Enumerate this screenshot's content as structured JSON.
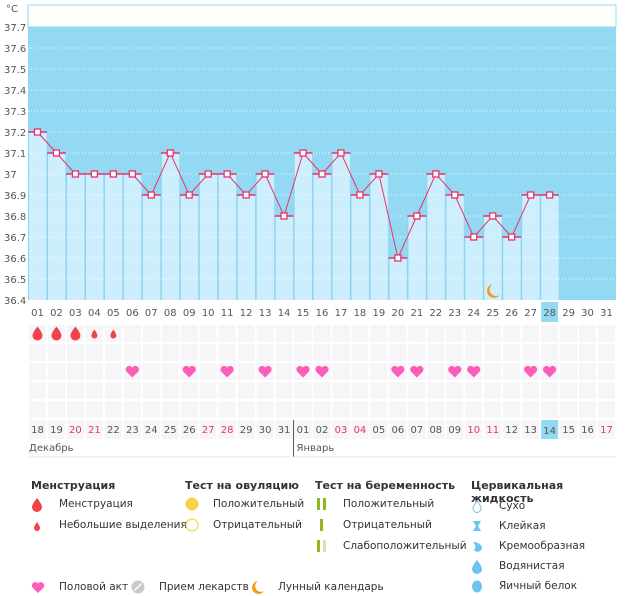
{
  "chart_data": {
    "type": "line",
    "title": "",
    "unit_label": "°C",
    "ylim": [
      36.4,
      37.7
    ],
    "yticks": [
      "37.7",
      "37.6",
      "37.5",
      "37.4",
      "37.3",
      "37.2",
      "37.1",
      "37",
      "36.9",
      "36.8",
      "36.7",
      "36.6",
      "36.5",
      "36.4"
    ],
    "cycle_days": [
      "01",
      "02",
      "03",
      "04",
      "05",
      "06",
      "07",
      "08",
      "09",
      "10",
      "11",
      "12",
      "13",
      "14",
      "15",
      "16",
      "17",
      "18",
      "19",
      "20",
      "21",
      "22",
      "23",
      "24",
      "25",
      "26",
      "27",
      "28",
      "29",
      "30",
      "31"
    ],
    "current_cycle_day": "28",
    "temperatures": [
      37.2,
      37.1,
      37.0,
      37.0,
      37.0,
      37.0,
      36.9,
      37.1,
      36.9,
      37.0,
      37.0,
      36.9,
      37.0,
      36.8,
      37.1,
      37.0,
      37.1,
      36.9,
      37.0,
      36.6,
      36.8,
      37.0,
      36.9,
      36.7,
      36.8,
      36.7,
      36.9,
      36.9
    ],
    "menstruation": [
      {
        "day": "01",
        "type": "heavy"
      },
      {
        "day": "02",
        "type": "heavy"
      },
      {
        "day": "03",
        "type": "heavy"
      },
      {
        "day": "04",
        "type": "spotting"
      },
      {
        "day": "05",
        "type": "spotting"
      }
    ],
    "intercourse_days": [
      "06",
      "09",
      "11",
      "13",
      "15",
      "16",
      "20",
      "21",
      "23",
      "24",
      "27",
      "28"
    ],
    "moon_days": [
      "25"
    ],
    "dates": [
      {
        "d": "18",
        "weekend": false
      },
      {
        "d": "19",
        "weekend": false
      },
      {
        "d": "20",
        "weekend": true
      },
      {
        "d": "21",
        "weekend": true
      },
      {
        "d": "22",
        "weekend": false
      },
      {
        "d": "23",
        "weekend": false
      },
      {
        "d": "24",
        "weekend": false
      },
      {
        "d": "25",
        "weekend": false
      },
      {
        "d": "26",
        "weekend": false
      },
      {
        "d": "27",
        "weekend": true
      },
      {
        "d": "28",
        "weekend": true
      },
      {
        "d": "29",
        "weekend": false
      },
      {
        "d": "30",
        "weekend": false
      },
      {
        "d": "31",
        "weekend": false
      },
      {
        "d": "01",
        "weekend": false
      },
      {
        "d": "02",
        "weekend": false
      },
      {
        "d": "03",
        "weekend": true
      },
      {
        "d": "04",
        "weekend": true
      },
      {
        "d": "05",
        "weekend": false
      },
      {
        "d": "06",
        "weekend": false
      },
      {
        "d": "07",
        "weekend": false
      },
      {
        "d": "08",
        "weekend": false
      },
      {
        "d": "09",
        "weekend": false
      },
      {
        "d": "10",
        "weekend": true
      },
      {
        "d": "11",
        "weekend": true
      },
      {
        "d": "12",
        "weekend": false
      },
      {
        "d": "13",
        "weekend": false
      },
      {
        "d": "14",
        "weekend": false,
        "today": true
      },
      {
        "d": "15",
        "weekend": false
      },
      {
        "d": "16",
        "weekend": false
      },
      {
        "d": "17",
        "weekend": true
      }
    ],
    "months": [
      {
        "label": "Декабрь",
        "start_index": 0
      },
      {
        "label": "Январь",
        "start_index": 14
      }
    ],
    "colors": {
      "bg": "#93d9f3",
      "bar": "#cdeefc",
      "line": "#e8336b",
      "weekend": "#e8336b",
      "today": "#93d9f3",
      "blood": "#f2434b",
      "heart": "#ff5cb8",
      "moon": "#f59a1b"
    }
  },
  "legend": {
    "menstruation": {
      "title": "Менструация",
      "items": [
        "Менструация",
        "Небольшие выделения"
      ]
    },
    "ovulation_test": {
      "title": "Тест на овуляцию",
      "items": [
        "Положительный",
        "Отрицательный"
      ]
    },
    "pregnancy_test": {
      "title": "Тест на беременность",
      "items": [
        "Положительный",
        "Отрицательный",
        "Слабоположительный"
      ]
    },
    "cervical_fluid": {
      "title": "Цервикальная жидкость",
      "items": [
        "Сухо",
        "Клейкая",
        "Кремообразная",
        "Водянистая",
        "Яичный белок"
      ]
    },
    "other": [
      "Половой акт",
      "Прием лекарств",
      "Лунный календарь"
    ]
  }
}
